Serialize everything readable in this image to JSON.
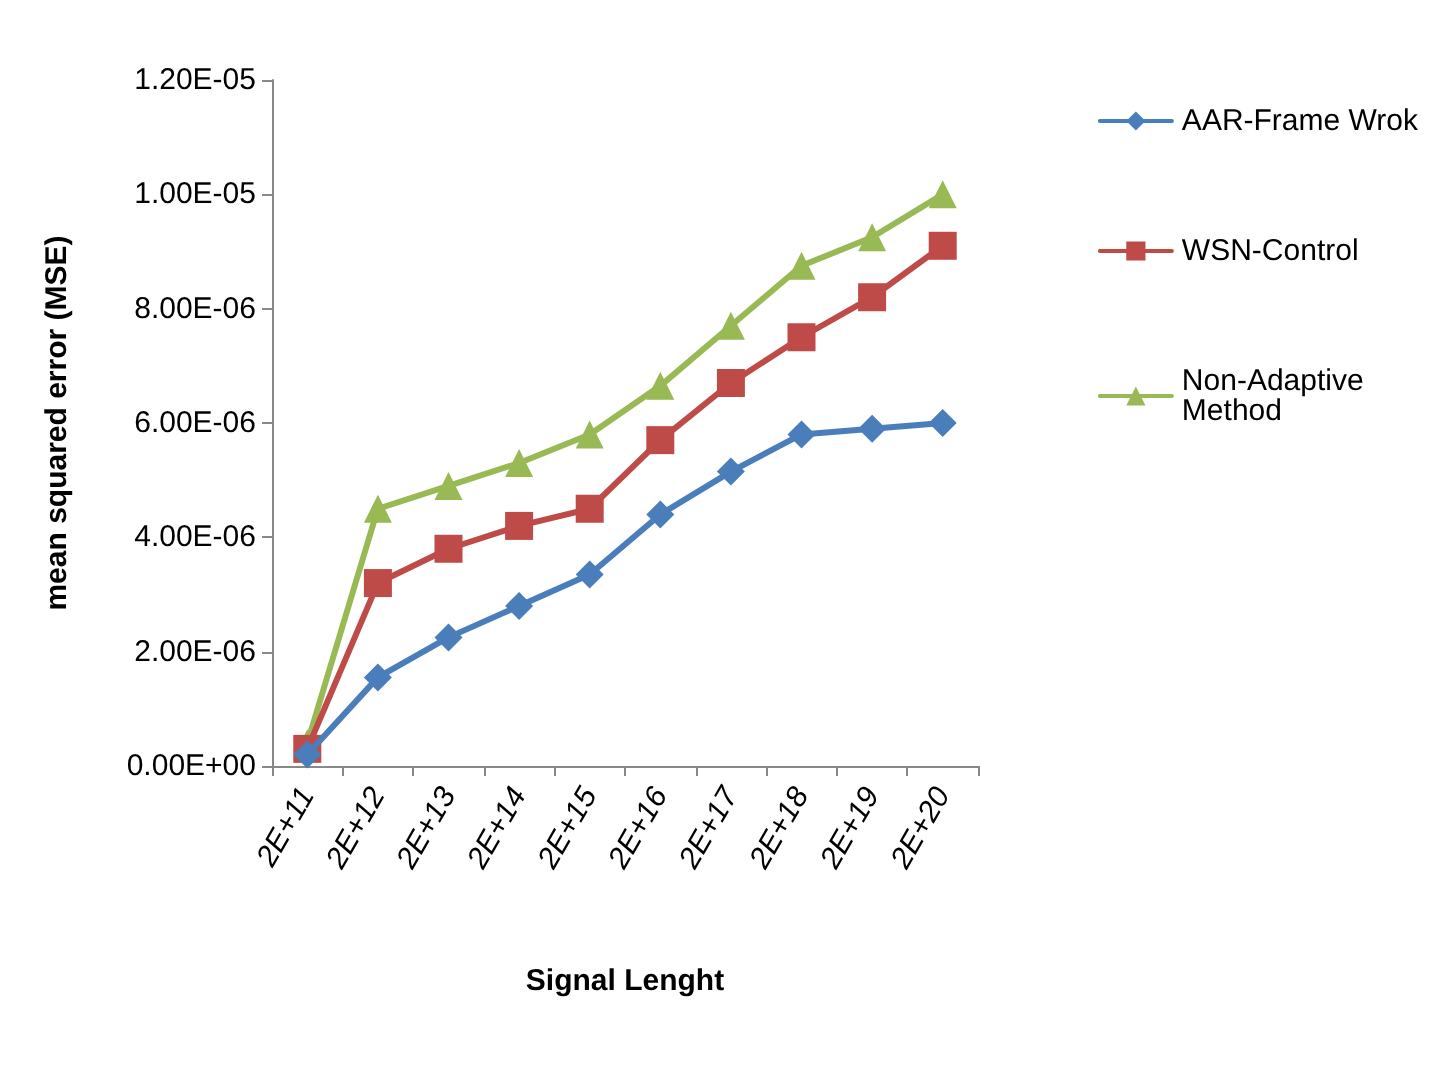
{
  "chart_data": {
    "type": "line",
    "xlabel": "Signal Lenght",
    "ylabel": "mean squared error (MSE)",
    "categories": [
      "2E+11",
      "2E+12",
      "2E+13",
      "2E+14",
      "2E+15",
      "2E+16",
      "2E+17",
      "2E+18",
      "2E+19",
      "2E+20"
    ],
    "series": [
      {
        "name": "AAR-Frame Wrok",
        "color": "#4a7ebb",
        "marker": "diamond",
        "values": [
          2e-07,
          1.55e-06,
          2.25e-06,
          2.8e-06,
          3.35e-06,
          4.4e-06,
          5.15e-06,
          5.8e-06,
          5.9e-06,
          6e-06
        ]
      },
      {
        "name": "WSN-Control",
        "color": "#be4b48",
        "marker": "square",
        "values": [
          3e-07,
          3.2e-06,
          3.8e-06,
          4.2e-06,
          4.5e-06,
          5.7e-06,
          6.7e-06,
          7.5e-06,
          8.2e-06,
          9.1e-06
        ]
      },
      {
        "name": "Non-Adaptive Method",
        "color": "#98b954",
        "marker": "triangle",
        "values": [
          4e-07,
          4.5e-06,
          4.9e-06,
          5.3e-06,
          5.8e-06,
          6.65e-06,
          7.7e-06,
          8.75e-06,
          9.25e-06,
          1e-05
        ]
      }
    ],
    "ylim": [
      0,
      1.2e-05
    ],
    "yticks": [
      {
        "value": 0,
        "label": "0.00E+00"
      },
      {
        "value": 2e-06,
        "label": "2.00E-06"
      },
      {
        "value": 4e-06,
        "label": "4.00E-06"
      },
      {
        "value": 6e-06,
        "label": "6.00E-06"
      },
      {
        "value": 8e-06,
        "label": "8.00E-06"
      },
      {
        "value": 1e-05,
        "label": "1.00E-05"
      },
      {
        "value": 1.2e-05,
        "label": "1.20E-05"
      }
    ],
    "grid": false,
    "legend": "right",
    "line_style": "solid"
  }
}
